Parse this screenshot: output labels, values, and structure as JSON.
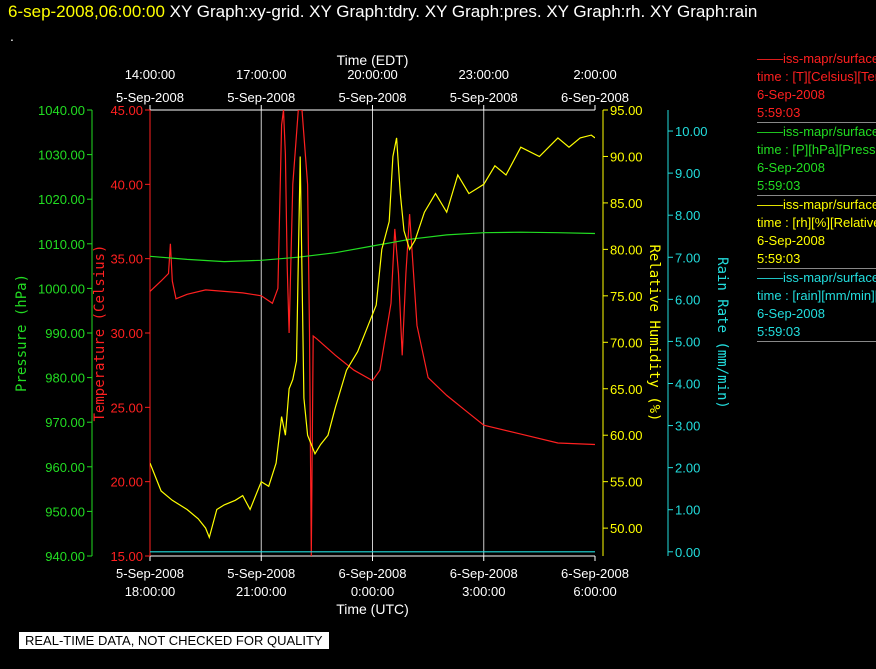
{
  "header": {
    "date": "6-sep-2008,06:00:00",
    "graphs": "XY Graph:xy-grid.  XY Graph:tdry.  XY Graph:pres.  XY Graph:rh.  XY Graph:rain",
    "dot": "."
  },
  "legend": [
    {
      "name": "iss-mapr/surface",
      "var": "time : [T][Celsius][Temperature]",
      "date": "6-Sep-2008",
      "time": "5:59:03",
      "color": "#ff2020"
    },
    {
      "name": "iss-mapr/surface",
      "var": "time : [P][hPa][Pressure]",
      "date": "6-Sep-2008",
      "time": "5:59:03",
      "color": "#22dd22"
    },
    {
      "name": "iss-mapr/surface",
      "var": "time : [rh][%][Relative Humidity]",
      "date": "6-Sep-2008",
      "time": "5:59:03",
      "color": "#ffff00"
    },
    {
      "name": "iss-mapr/surface",
      "var": "time : [rain][mm/min][Rain Rate]",
      "date": "6-Sep-2008",
      "time": "5:59:03",
      "color": "#22dddd"
    }
  ],
  "footer": "REAL-TIME DATA, NOT CHECKED FOR QUALITY",
  "chart_data": {
    "type": "line",
    "x_unit": "hours since 5-Sep-2008 18:00 UTC",
    "xlim": [
      -3.0,
      12.0
    ],
    "top_axis": {
      "label": "Time (EDT)",
      "ticks": [
        {
          "x": -0.0,
          "l1": "14:00:00",
          "l2": "5-Sep-2008"
        },
        {
          "x": 3.0,
          "l1": "17:00:00",
          "l2": "5-Sep-2008"
        },
        {
          "x": 6.0,
          "l1": "20:00:00",
          "l2": "5-Sep-2008"
        },
        {
          "x": 9.0,
          "l1": "23:00:00",
          "l2": "5-Sep-2008"
        },
        {
          "x": 12.0,
          "l1": "2:00:00",
          "l2": "6-Sep-2008"
        }
      ]
    },
    "bottom_axis": {
      "label": "Time (UTC)",
      "ticks": [
        {
          "x": 0,
          "l1": "5-Sep-2008",
          "l2": "18:00:00"
        },
        {
          "x": 3,
          "l1": "5-Sep-2008",
          "l2": "21:00:00"
        },
        {
          "x": 6,
          "l1": "6-Sep-2008",
          "l2": "0:00:00"
        },
        {
          "x": 9,
          "l1": "6-Sep-2008",
          "l2": "3:00:00"
        },
        {
          "x": 12,
          "l1": "6-Sep-2008",
          "l2": "6:00:00"
        }
      ]
    },
    "y_axes": [
      {
        "id": "pres",
        "label": "Pressure (hPa)",
        "color": "#22dd22",
        "min": 940,
        "max": 1040,
        "ticks": [
          "940.00",
          "950.00",
          "960.00",
          "970.00",
          "980.00",
          "990.00",
          "1000.00",
          "1010.00",
          "1020.00",
          "1030.00",
          "1040.00"
        ]
      },
      {
        "id": "temp",
        "label": "Temperature (Celsius)",
        "color": "#ff2020",
        "min": 15,
        "max": 45,
        "ticks": [
          "15.00",
          "20.00",
          "25.00",
          "30.00",
          "35.00",
          "40.00",
          "45.00"
        ]
      },
      {
        "id": "rh",
        "label": "Relative Humidity (%)",
        "color": "#ffff00",
        "min": 47,
        "max": 95,
        "ticks": [
          "50.00",
          "55.00",
          "60.00",
          "65.00",
          "70.00",
          "75.00",
          "80.00",
          "85.00",
          "90.00",
          "95.00"
        ]
      },
      {
        "id": "rain",
        "label": "Rain Rate (mm/min)",
        "color": "#22dddd",
        "min": -0.1,
        "max": 10.5,
        "ticks": [
          "0.00",
          "1.00",
          "2.00",
          "3.00",
          "4.00",
          "5.00",
          "6.00",
          "7.00",
          "8.00",
          "9.00",
          "10.00"
        ]
      }
    ],
    "series": [
      {
        "axis": "temp",
        "color": "#ff2020",
        "x": [
          0,
          0.3,
          0.5,
          0.55,
          0.6,
          0.7,
          1,
          1.5,
          2,
          2.5,
          3,
          3.3,
          3.45,
          3.55,
          3.6,
          3.65,
          3.7,
          3.75,
          3.85,
          4.0,
          4.1,
          4.25,
          4.3,
          4.35,
          4.4,
          4.5,
          5,
          5.5,
          6,
          6.2,
          6.5,
          6.6,
          6.7,
          6.8,
          6.9,
          7.0,
          7.2,
          7.5,
          8,
          8.5,
          9,
          10,
          11,
          12
        ],
        "y": [
          32.8,
          33.5,
          34,
          36,
          33.5,
          32.3,
          32.6,
          32.9,
          32.8,
          32.7,
          32.5,
          32,
          33,
          44,
          45,
          42,
          34.5,
          30,
          40,
          45,
          45,
          40,
          30,
          15,
          29.8,
          29.6,
          28.5,
          27.5,
          26.8,
          27.5,
          32,
          37,
          34,
          28.5,
          34,
          38,
          30.5,
          27,
          25.8,
          24.8,
          23.8,
          23.2,
          22.6,
          22.5
        ]
      },
      {
        "axis": "pres",
        "color": "#22dd22",
        "x": [
          0,
          1,
          2,
          3,
          4,
          5,
          6,
          7,
          8,
          9,
          10,
          11,
          12
        ],
        "y": [
          1007.2,
          1006.5,
          1006,
          1006.3,
          1007,
          1008,
          1009.5,
          1011,
          1012,
          1012.5,
          1012.6,
          1012.5,
          1012.3
        ]
      },
      {
        "axis": "rh",
        "color": "#ffff00",
        "x": [
          0,
          0.3,
          0.6,
          1.0,
          1.3,
          1.5,
          1.6,
          1.8,
          2.0,
          2.3,
          2.5,
          2.7,
          2.9,
          3.0,
          3.2,
          3.4,
          3.55,
          3.65,
          3.75,
          3.85,
          3.95,
          4.05,
          4.15,
          4.25,
          4.35,
          4.45,
          4.6,
          4.8,
          5.0,
          5.3,
          5.6,
          5.9,
          6.1,
          6.25,
          6.45,
          6.55,
          6.65,
          6.75,
          6.85,
          7.0,
          7.15,
          7.4,
          7.7,
          8.0,
          8.3,
          8.6,
          9.0,
          9.3,
          9.6,
          10.0,
          10.5,
          11.0,
          11.3,
          11.6,
          11.9,
          12.0
        ],
        "y": [
          57,
          54,
          53,
          52,
          51,
          50,
          49,
          52,
          52.5,
          53,
          53.5,
          52,
          54,
          55,
          54.5,
          57,
          62,
          60,
          65,
          66,
          68,
          90,
          64,
          60,
          59,
          58,
          59,
          60,
          63,
          67,
          69,
          72,
          74,
          80,
          83,
          90,
          92,
          86,
          82,
          80,
          81,
          84,
          86,
          84,
          88,
          86,
          87,
          89,
          88,
          91,
          90,
          92,
          91,
          92,
          92.3,
          92
        ]
      },
      {
        "axis": "rain",
        "color": "#22dddd",
        "x": [
          0,
          12
        ],
        "y": [
          0,
          0
        ]
      }
    ]
  }
}
